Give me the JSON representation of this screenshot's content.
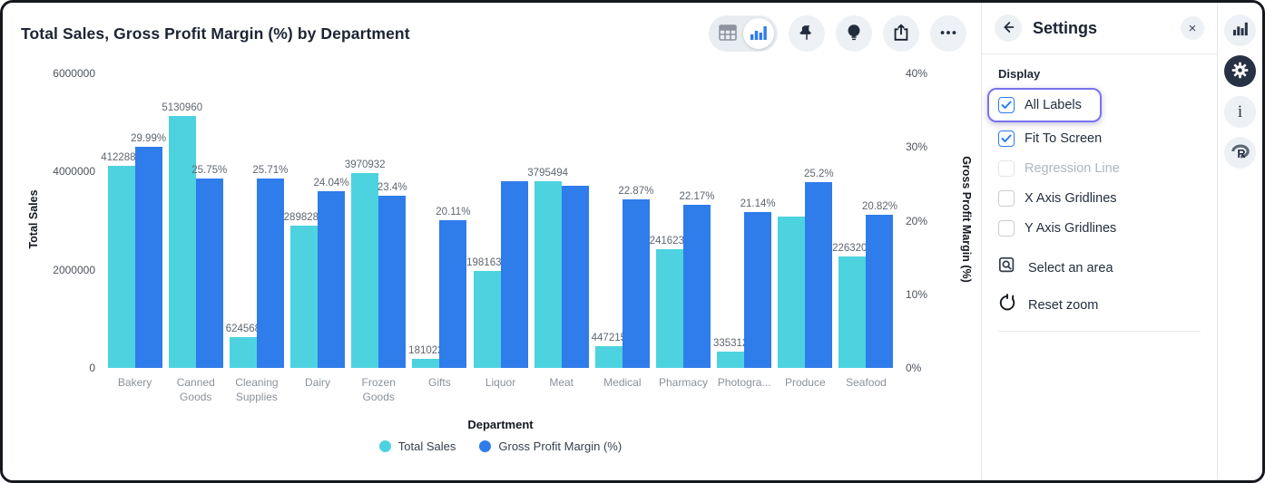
{
  "header": {
    "title": "Total Sales, Gross Profit Margin (%) by Department"
  },
  "toolbar": {
    "view_toggle": {
      "options": [
        "table-view",
        "chart-view"
      ],
      "selected": "chart-view"
    },
    "buttons": [
      "pin",
      "insight-bulb",
      "share",
      "more"
    ]
  },
  "colors": {
    "teal": "#4DD3E0",
    "blue": "#2F7CEB",
    "focus_ring": "#7A72F2",
    "checkbox_blue": "#2B7BF3",
    "icon_dark": "#222C3D"
  },
  "chart_data": {
    "type": "bar",
    "title": "Total Sales, Gross Profit Margin (%) by Department",
    "xlabel": "Department",
    "legend_position": "bottom",
    "grid": false,
    "categories": [
      "Bakery",
      "Canned Goods",
      "Cleaning Supplies",
      "Dairy",
      "Frozen Goods",
      "Gifts",
      "Liquor",
      "Meat",
      "Medical",
      "Pharmacy",
      "Photogra...",
      "Produce",
      "Seafood"
    ],
    "tick_display": [
      "Bakery",
      "Canned\nGoods",
      "Cleaning\nSupplies",
      "Dairy",
      "Frozen\nGoods",
      "Gifts",
      "Liquor",
      "Meat",
      "Medical",
      "Pharmacy",
      "Photogra...",
      "Produce",
      "Seafood"
    ],
    "left_axis": {
      "label": "Total Sales",
      "ticks": [
        "6000000",
        "4000000",
        "2000000",
        "0"
      ],
      "min": 0,
      "max": 6000000
    },
    "right_axis": {
      "label": "Gross Profit Margin (%)",
      "ticks": [
        "40%",
        "30%",
        "20%",
        "10%",
        "0%"
      ],
      "min": 0,
      "max": 40
    },
    "series": [
      {
        "name": "Total Sales",
        "axis": "left",
        "color": "#4DD3E0",
        "values": [
          4122881,
          5130960,
          624568,
          2898285,
          3970932,
          181022,
          1981634,
          3795494,
          447215,
          2416230,
          335312,
          3090000,
          2263205
        ],
        "labels": [
          "4122881",
          "5130960",
          "624568",
          "2898285",
          "3970932",
          "181022",
          "1981634",
          "3795494",
          "447215",
          "2416230",
          "335312",
          null,
          "2263205"
        ]
      },
      {
        "name": "Gross Profit Margin (%)",
        "axis": "right",
        "color": "#2F7CEB",
        "values": [
          29.99,
          25.75,
          25.71,
          24.04,
          23.4,
          20.11,
          25.4,
          24.7,
          22.87,
          22.17,
          21.14,
          25.2,
          20.82
        ],
        "labels": [
          "29.99%",
          "25.75%",
          "25.71%",
          "24.04%",
          "23.4%",
          "20.11%",
          null,
          null,
          "22.87%",
          "22.17%",
          "21.14%",
          "25.2%",
          "20.82%"
        ]
      }
    ]
  },
  "settings": {
    "title": "Settings",
    "section": "Display",
    "options": [
      {
        "label": "All Labels",
        "checked": true,
        "highlighted": true,
        "disabled": false
      },
      {
        "label": "Fit To Screen",
        "checked": true,
        "highlighted": false,
        "disabled": false
      },
      {
        "label": "Regression Line",
        "checked": false,
        "highlighted": false,
        "disabled": true
      },
      {
        "label": "X Axis Gridlines",
        "checked": false,
        "highlighted": false,
        "disabled": false
      },
      {
        "label": "Y Axis Gridlines",
        "checked": false,
        "highlighted": false,
        "disabled": false
      }
    ],
    "actions": [
      {
        "label": "Select an area",
        "icon": "area-select-icon"
      },
      {
        "label": "Reset zoom",
        "icon": "reset-zoom-icon"
      }
    ],
    "close_label": "×"
  },
  "rail": {
    "icons": [
      "chart-icon",
      "gear-icon",
      "info-icon",
      "r-logo-icon"
    ],
    "active": "gear-icon",
    "info_glyph": "i"
  }
}
